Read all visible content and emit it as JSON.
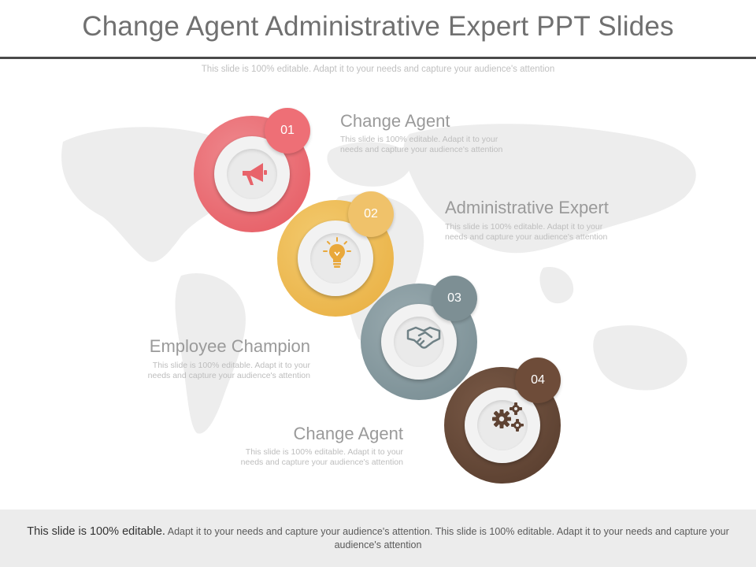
{
  "slide": {
    "title": "Change Agent Administrative Expert PPT Slides",
    "subtitle": "This slide is 100% editable. Adapt it to your needs and capture your audience's attention"
  },
  "steps": [
    {
      "number": "01",
      "label": "Change Agent",
      "description": "This slide is 100% editable. Adapt it to your needs and capture your audience's attention",
      "icon": "megaphone-icon",
      "color": "#e8636a"
    },
    {
      "number": "02",
      "label": "Administrative Expert",
      "description": "This slide is 100% editable. Adapt it to your needs and capture your audience's attention",
      "icon": "lightbulb-icon",
      "color": "#ebb54a"
    },
    {
      "number": "03",
      "label": "Employee Champion",
      "description": "This slide is 100% editable. Adapt it to your needs and capture your audience's attention",
      "icon": "handshake-icon",
      "color": "#7d8f94"
    },
    {
      "number": "04",
      "label": "Change Agent",
      "description": "This slide is 100% editable. Adapt it to your needs and capture your audience's attention",
      "icon": "gears-icon",
      "color": "#5e4232"
    }
  ],
  "footer": {
    "lead": "This slide is 100% editable.",
    "rest": "Adapt it to your needs and capture your audience's attention. This slide is 100% editable. Adapt it to your needs and capture your audience's attention"
  }
}
